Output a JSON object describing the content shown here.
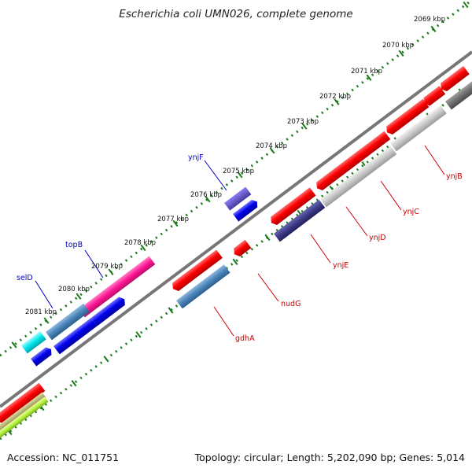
{
  "title": "Escherichia coli UMN026, complete genome",
  "footer": {
    "accession": "Accession: NC_011751",
    "summary": "Topology: circular; Length: 5,202,090 bp; Genes: 5,014"
  },
  "colors": {
    "forward_label": "#0000cc",
    "reverse_label": "#cc0000",
    "backbone": "#777777",
    "tick": "#1a7a1a"
  },
  "kbp_labels": [
    "2069 kbp",
    "2070 kbp",
    "2071 kbp",
    "2072 kbp",
    "2073 kbp",
    "2074 kbp",
    "2075 kbp",
    "2076 kbp",
    "2077 kbp",
    "2078 kbp",
    "2079 kbp",
    "2080 kbp",
    "2081 kbp"
  ],
  "forward_genes": [
    "ynjF",
    "topB",
    "selD"
  ],
  "reverse_genes": [
    "ynjB",
    "ynjC",
    "ynjD",
    "ynjE",
    "nudG",
    "gdhA"
  ]
}
